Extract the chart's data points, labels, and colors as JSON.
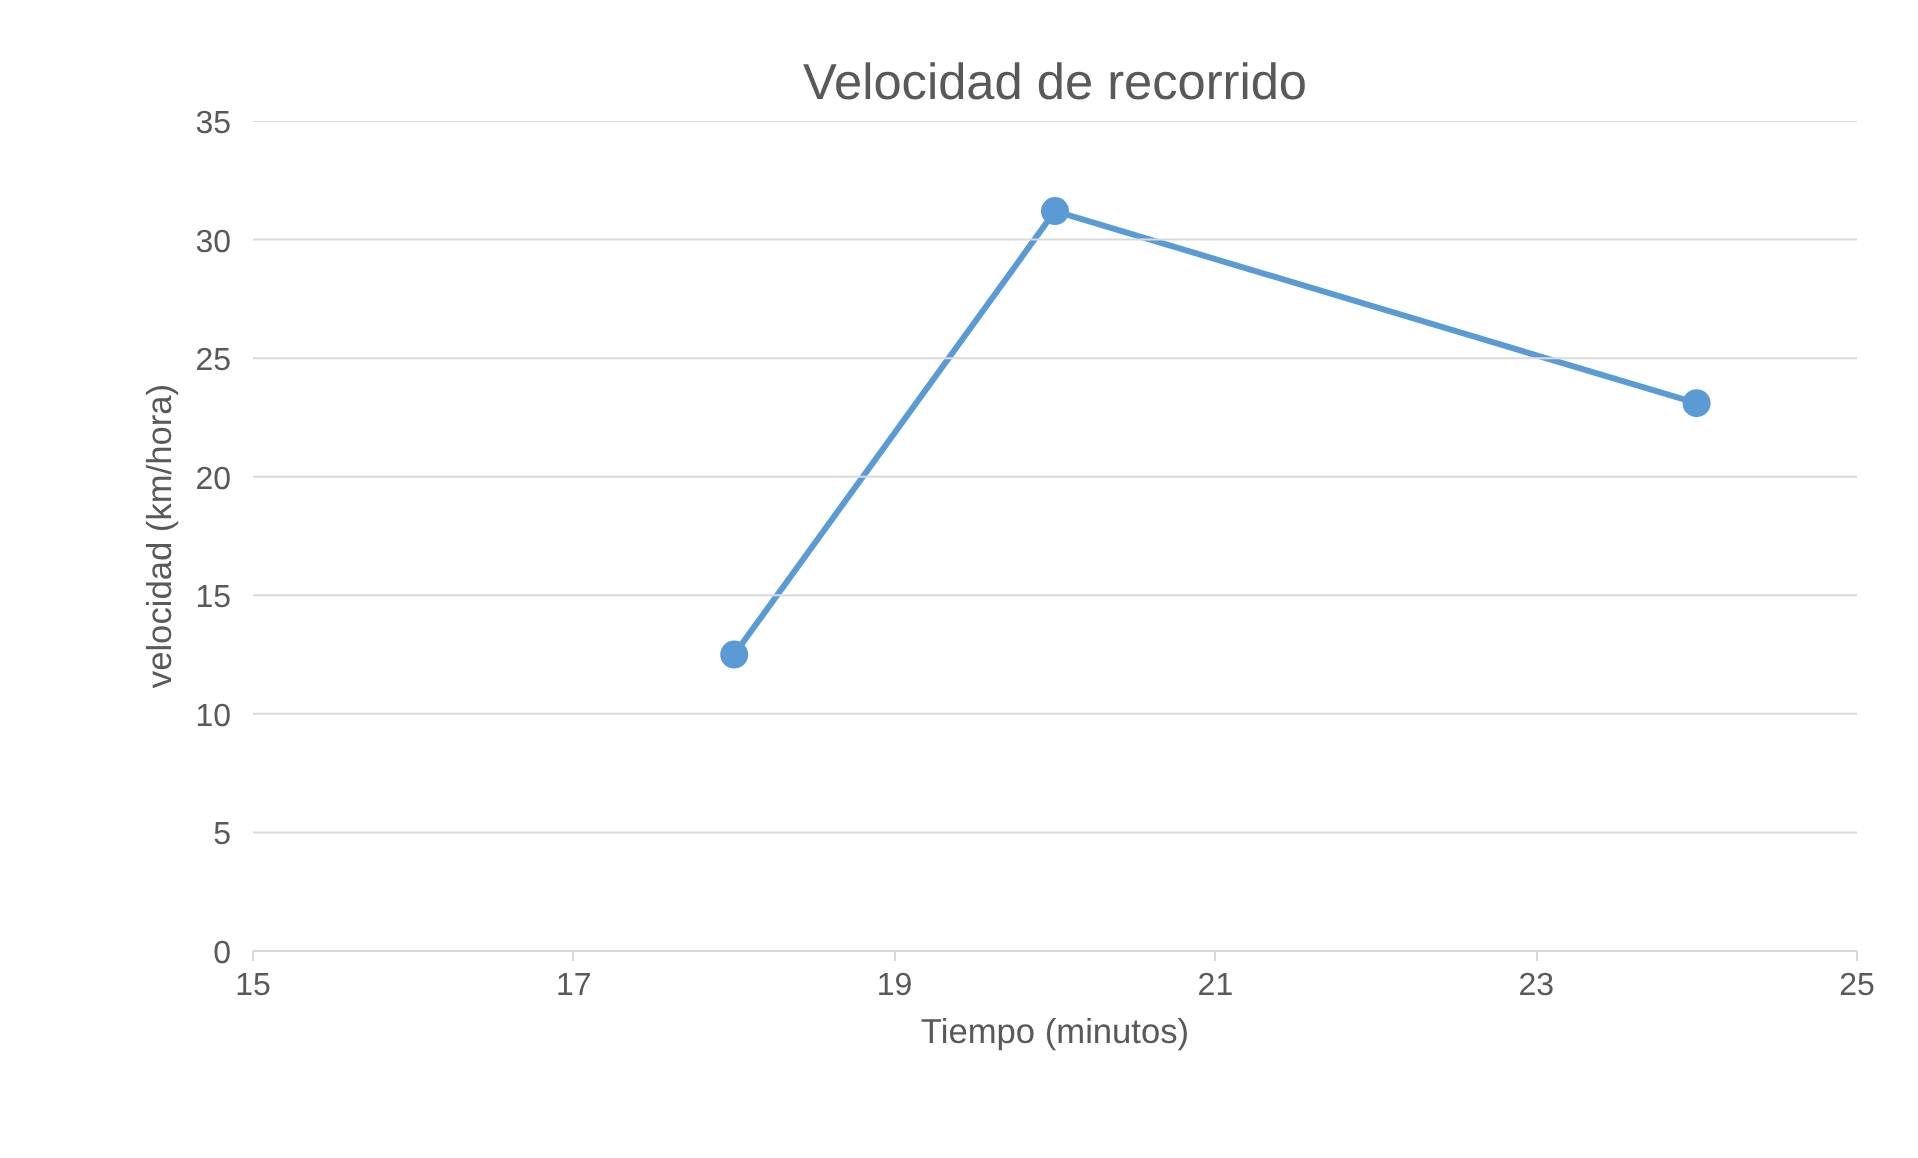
{
  "chart_data": {
    "type": "line",
    "title": "Velocidad de recorrido",
    "xlabel": "Tiempo (minutos)",
    "ylabel": "velocidad (km/hora)",
    "x": [
      18,
      20,
      24
    ],
    "series": [
      {
        "color": "#5b9bd5",
        "values": [
          12.5,
          31.2,
          23.1
        ]
      }
    ],
    "xlim": [
      15,
      25
    ],
    "xticks": [
      15,
      17,
      19,
      21,
      23,
      25
    ],
    "ylim": [
      0,
      35
    ],
    "yticks": [
      0,
      5,
      10,
      15,
      20,
      25,
      30,
      35
    ],
    "grid": "y",
    "marker": "circle",
    "line_style": "solid"
  }
}
